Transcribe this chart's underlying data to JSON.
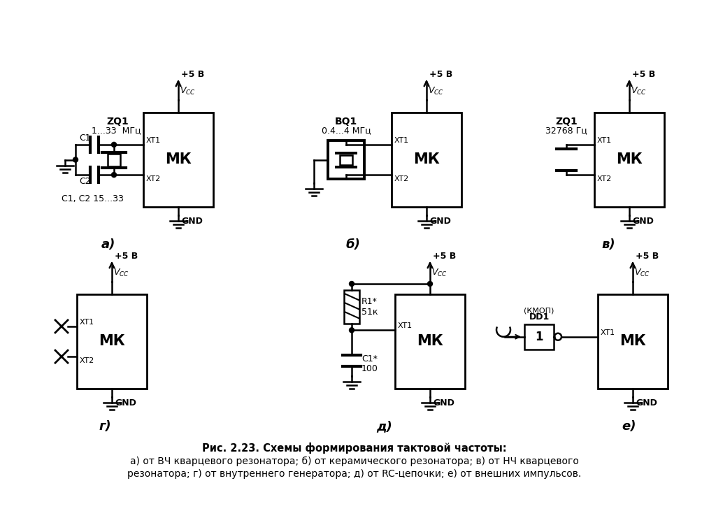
{
  "title": "Рис. 2.23. Схемы формирования тактовой частоты:",
  "caption_line2": "а) от ВЧ кварцевого резонатора; б) от керамического резонатора; в) от НЧ кварцевого",
  "caption_line3": "резонатора; г) от внутреннего генератора; д) от RC-цепочки; е) от внешних импульсов.",
  "bg_color": "#ffffff",
  "line_color": "#000000"
}
